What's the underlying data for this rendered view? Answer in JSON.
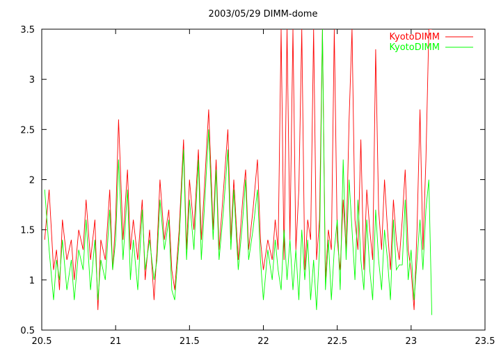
{
  "chart_data": {
    "type": "line",
    "title": "2003/05/29 DIMM-dome",
    "xlabel": "",
    "ylabel": "",
    "xlim": [
      20.5,
      23.5
    ],
    "ylim": [
      0.5,
      3.5
    ],
    "xticks": [
      20.5,
      21,
      21.5,
      22,
      22.5,
      23,
      23.5
    ],
    "xtick_labels": [
      "20.5",
      "21",
      "21.5",
      "22",
      "22.5",
      "23",
      "23.5"
    ],
    "yticks": [
      0.5,
      1,
      1.5,
      2,
      2.5,
      3,
      3.5
    ],
    "ytick_labels": [
      "0.5",
      "1",
      "1.5",
      "2",
      "2.5",
      "3",
      "3.5"
    ],
    "grid": false,
    "legend_position": "top-right",
    "series": [
      {
        "name": "KyotoDIMM",
        "color": "#ff0000",
        "x": [
          20.52,
          20.55,
          20.58,
          20.6,
          20.62,
          20.64,
          20.67,
          20.7,
          20.72,
          20.75,
          20.78,
          20.8,
          20.83,
          20.86,
          20.88,
          20.9,
          20.93,
          20.96,
          20.98,
          21.0,
          21.02,
          21.05,
          21.08,
          21.1,
          21.12,
          21.15,
          21.18,
          21.2,
          21.23,
          21.26,
          21.28,
          21.3,
          21.33,
          21.36,
          21.38,
          21.4,
          21.43,
          21.46,
          21.48,
          21.5,
          21.53,
          21.56,
          21.58,
          21.6,
          21.63,
          21.66,
          21.68,
          21.7,
          21.73,
          21.76,
          21.78,
          21.8,
          21.83,
          21.86,
          21.88,
          21.9,
          21.93,
          21.96,
          21.98,
          22.0,
          22.03,
          22.06,
          22.08,
          22.1,
          22.12,
          22.14,
          22.16,
          22.18,
          22.2,
          22.22,
          22.24,
          22.26,
          22.28,
          22.3,
          22.32,
          22.34,
          22.36,
          22.38,
          22.4,
          22.42,
          22.44,
          22.46,
          22.48,
          22.5,
          22.52,
          22.54,
          22.56,
          22.58,
          22.6,
          22.62,
          22.64,
          22.66,
          22.68,
          22.7,
          22.72,
          22.74,
          22.76,
          22.78,
          22.8,
          22.82,
          22.84,
          22.86,
          22.88,
          22.9,
          22.92,
          22.94,
          22.96,
          22.98,
          23.0,
          23.02,
          23.04,
          23.06,
          23.08,
          23.1,
          23.12,
          23.14
        ],
        "y": [
          1.4,
          1.9,
          1.1,
          1.3,
          0.9,
          1.6,
          1.2,
          1.4,
          1.0,
          1.5,
          1.3,
          1.8,
          1.2,
          1.6,
          0.7,
          1.4,
          1.2,
          1.9,
          1.1,
          1.6,
          2.6,
          1.4,
          2.1,
          1.3,
          1.6,
          1.2,
          1.8,
          1.0,
          1.5,
          0.8,
          1.3,
          2.0,
          1.4,
          1.7,
          1.1,
          0.9,
          1.5,
          2.4,
          1.3,
          2.0,
          1.5,
          2.3,
          1.4,
          1.9,
          2.7,
          1.5,
          2.2,
          1.3,
          1.9,
          2.5,
          1.4,
          2.0,
          1.2,
          1.8,
          2.1,
          1.3,
          1.7,
          2.2,
          1.4,
          1.1,
          1.4,
          1.2,
          1.6,
          1.3,
          3.5,
          1.2,
          3.5,
          1.4,
          3.5,
          1.3,
          1.9,
          3.5,
          1.1,
          1.6,
          1.4,
          3.5,
          1.2,
          1.6,
          3.5,
          1.0,
          1.5,
          1.3,
          3.5,
          1.4,
          1.1,
          1.8,
          1.3,
          2.6,
          3.5,
          1.6,
          1.3,
          2.4,
          1.1,
          1.9,
          1.5,
          1.2,
          3.3,
          1.7,
          1.3,
          2.0,
          1.5,
          1.1,
          1.8,
          1.4,
          1.2,
          1.6,
          2.1,
          1.3,
          1.1,
          0.7,
          1.5,
          2.7,
          1.3,
          2.2,
          3.5,
          3.5
        ]
      },
      {
        "name": "KyotoDIMM",
        "color": "#00ff00",
        "x": [
          20.52,
          20.55,
          20.58,
          20.6,
          20.62,
          20.64,
          20.67,
          20.7,
          20.72,
          20.75,
          20.78,
          20.8,
          20.83,
          20.86,
          20.88,
          20.9,
          20.93,
          20.96,
          20.98,
          21.0,
          21.02,
          21.05,
          21.08,
          21.1,
          21.12,
          21.15,
          21.18,
          21.2,
          21.23,
          21.26,
          21.28,
          21.3,
          21.33,
          21.36,
          21.38,
          21.4,
          21.43,
          21.46,
          21.48,
          21.5,
          21.53,
          21.56,
          21.58,
          21.6,
          21.63,
          21.66,
          21.68,
          21.7,
          21.73,
          21.76,
          21.78,
          21.8,
          21.83,
          21.86,
          21.88,
          21.9,
          21.93,
          21.96,
          21.98,
          22.0,
          22.03,
          22.06,
          22.08,
          22.1,
          22.12,
          22.14,
          22.16,
          22.18,
          22.2,
          22.22,
          22.24,
          22.26,
          22.28,
          22.3,
          22.32,
          22.34,
          22.36,
          22.38,
          22.4,
          22.42,
          22.44,
          22.46,
          22.48,
          22.5,
          22.52,
          22.54,
          22.56,
          22.58,
          22.6,
          22.62,
          22.64,
          22.66,
          22.68,
          22.7,
          22.72,
          22.74,
          22.76,
          22.78,
          22.8,
          22.82,
          22.84,
          22.86,
          22.88,
          22.9,
          22.92,
          22.94,
          22.96,
          22.98,
          23.0,
          23.02,
          23.04,
          23.06,
          23.08,
          23.1,
          23.12,
          23.14
        ],
        "y": [
          1.9,
          1.3,
          0.8,
          1.2,
          1.0,
          1.4,
          0.9,
          1.2,
          0.8,
          1.3,
          1.1,
          1.6,
          0.9,
          1.4,
          0.8,
          1.2,
          1.0,
          1.7,
          1.1,
          1.4,
          2.2,
          1.2,
          1.9,
          1.0,
          1.4,
          0.9,
          1.7,
          1.1,
          1.4,
          1.0,
          1.2,
          1.8,
          1.3,
          1.6,
          0.9,
          0.8,
          1.4,
          2.3,
          1.2,
          1.8,
          1.3,
          2.2,
          1.2,
          1.7,
          2.5,
          1.4,
          2.1,
          1.2,
          1.7,
          2.3,
          1.3,
          1.9,
          1.1,
          1.6,
          2.0,
          1.2,
          1.5,
          1.9,
          1.2,
          0.8,
          1.3,
          1.0,
          1.4,
          1.1,
          0.9,
          1.5,
          1.0,
          1.4,
          0.9,
          1.3,
          0.8,
          1.5,
          1.0,
          1.4,
          0.8,
          1.2,
          0.7,
          1.3,
          3.5,
          0.9,
          1.4,
          0.8,
          1.3,
          1.6,
          0.9,
          2.2,
          1.2,
          2.0,
          1.5,
          1.0,
          1.8,
          1.2,
          0.9,
          1.6,
          1.1,
          0.8,
          1.7,
          1.2,
          0.9,
          1.5,
          1.2,
          0.8,
          1.6,
          1.1,
          1.15,
          1.15,
          1.8,
          1.0,
          1.3,
          0.8,
          1.2,
          1.6,
          1.1,
          1.7,
          2.0,
          0.65
        ]
      }
    ]
  }
}
